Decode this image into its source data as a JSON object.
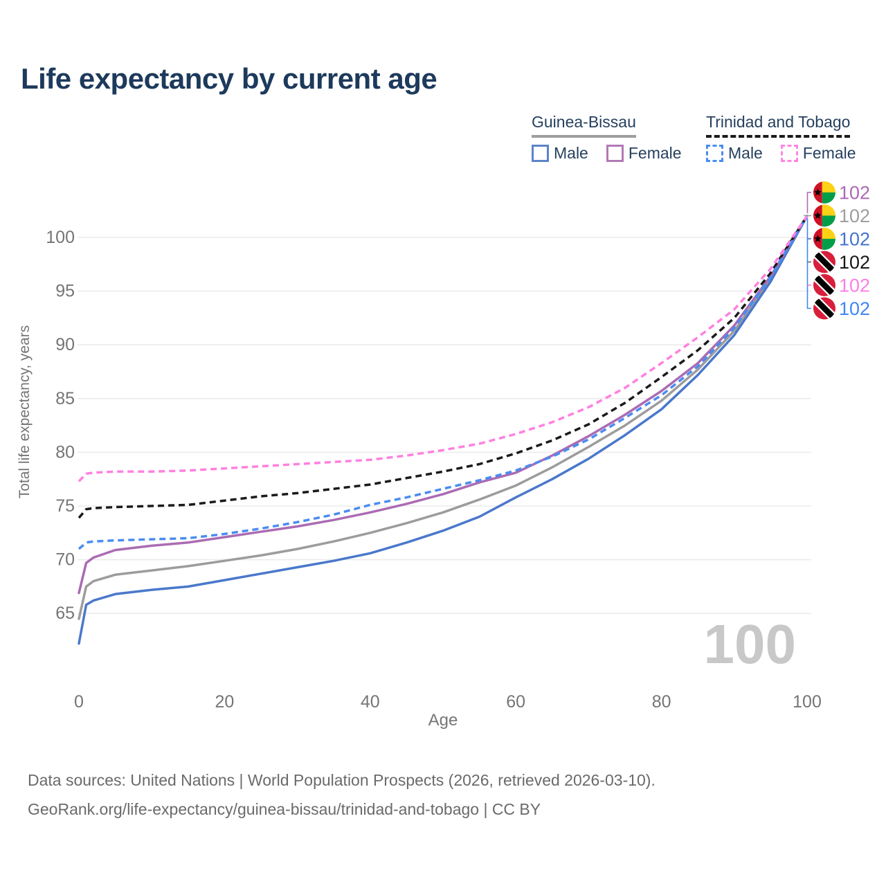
{
  "title": "Life expectancy by current age",
  "watermark": "100",
  "legend": {
    "groups": [
      {
        "name": "Guinea-Bissau",
        "style": "solid",
        "underline_color": "#9e9e9e",
        "items": [
          {
            "label": "Male",
            "color": "#5b84ca",
            "dashed": false
          },
          {
            "label": "Female",
            "color": "#b279b6",
            "dashed": false
          }
        ]
      },
      {
        "name": "Trinidad and Tobago",
        "style": "dashed",
        "underline_color": "#1a1a1a",
        "items": [
          {
            "label": "Male",
            "color": "#4a8cf0",
            "dashed": true
          },
          {
            "label": "Female",
            "color": "#ff85e6",
            "dashed": true
          }
        ]
      }
    ]
  },
  "footer": {
    "line1": "Data sources: United Nations | World Population Prospects (2026, retrieved 2026-03-10).",
    "line2": "GeoRank.org/life-expectancy/guinea-bissau/trinidad-and-tobago | CC BY"
  },
  "chart_data": {
    "type": "line",
    "title": "Life expectancy by current age",
    "xlabel": "Age",
    "ylabel": "Total life expectancy, years",
    "xlim": [
      0,
      100
    ],
    "ylim": [
      62,
      103
    ],
    "xticks": [
      0,
      20,
      40,
      60,
      80,
      100
    ],
    "yticks": [
      65,
      70,
      75,
      80,
      85,
      90,
      95,
      100
    ],
    "grid": "horizontal",
    "legend_position": "top-right",
    "x": [
      0,
      1,
      2,
      5,
      10,
      15,
      20,
      25,
      30,
      35,
      40,
      45,
      50,
      55,
      60,
      65,
      70,
      75,
      80,
      85,
      90,
      95,
      100
    ],
    "series": [
      {
        "name": "Guinea-Bissau Both sexes",
        "color": "#9c9c9c",
        "dash": false,
        "values": [
          64.5,
          67.5,
          68.0,
          68.6,
          69.0,
          69.4,
          69.9,
          70.4,
          71.0,
          71.7,
          72.5,
          73.4,
          74.4,
          75.6,
          76.9,
          78.6,
          80.5,
          82.5,
          84.8,
          87.7,
          91.3,
          96.1,
          102
        ]
      },
      {
        "name": "Guinea-Bissau Male",
        "color": "#4a78cb",
        "dash": false,
        "values": [
          62.2,
          65.8,
          66.2,
          66.8,
          67.2,
          67.5,
          68.1,
          68.7,
          69.3,
          69.9,
          70.6,
          71.6,
          72.7,
          74.0,
          75.8,
          77.5,
          79.4,
          81.6,
          84.0,
          87.2,
          90.9,
          95.9,
          102
        ]
      },
      {
        "name": "Guinea-Bissau Female",
        "color": "#ab6bb3",
        "dash": false,
        "values": [
          66.9,
          69.7,
          70.2,
          70.9,
          71.3,
          71.6,
          72.1,
          72.6,
          73.1,
          73.7,
          74.4,
          75.2,
          76.1,
          77.2,
          78.1,
          79.7,
          81.5,
          83.5,
          85.7,
          88.3,
          91.8,
          96.4,
          102
        ]
      },
      {
        "name": "Trinidad and Tobago Both sexes",
        "color": "#1a1a1a",
        "dash": true,
        "values": [
          73.9,
          74.7,
          74.8,
          74.9,
          75.0,
          75.1,
          75.5,
          75.9,
          76.2,
          76.6,
          77.0,
          77.6,
          78.2,
          78.9,
          79.9,
          81.1,
          82.6,
          84.6,
          87.0,
          89.5,
          92.5,
          96.7,
          102
        ]
      },
      {
        "name": "Trinidad and Tobago Male",
        "color": "#4a8cf0",
        "dash": true,
        "values": [
          71.0,
          71.6,
          71.7,
          71.8,
          71.9,
          72.0,
          72.4,
          72.9,
          73.5,
          74.2,
          75.1,
          75.8,
          76.6,
          77.4,
          78.3,
          79.6,
          81.2,
          83.2,
          85.3,
          88.0,
          91.6,
          96.3,
          102
        ]
      },
      {
        "name": "Trinidad and Tobago Female",
        "color": "#ff80e0",
        "dash": true,
        "values": [
          77.3,
          78.0,
          78.1,
          78.2,
          78.2,
          78.3,
          78.5,
          78.7,
          78.9,
          79.1,
          79.3,
          79.7,
          80.2,
          80.8,
          81.7,
          82.8,
          84.2,
          86.0,
          88.3,
          90.7,
          93.3,
          97.1,
          102
        ]
      }
    ],
    "end_labels": [
      {
        "series": "Guinea-Bissau Female",
        "value": "102",
        "color": "#ad68b5",
        "flag": "guinea-bissau"
      },
      {
        "series": "Guinea-Bissau Both sexes",
        "value": "102",
        "color": "#9e9e9e",
        "flag": "guinea-bissau"
      },
      {
        "series": "Guinea-Bissau Male",
        "value": "102",
        "color": "#4573cd",
        "flag": "guinea-bissau"
      },
      {
        "series": "Trinidad and Tobago Both sexes",
        "value": "102",
        "color": "#181818",
        "flag": "trinidad-and-tobago"
      },
      {
        "series": "Trinidad and Tobago Female",
        "value": "102",
        "color": "#fc7de7",
        "flag": "trinidad-and-tobago"
      },
      {
        "series": "Trinidad and Tobago Male",
        "value": "102",
        "color": "#3f87f5",
        "flag": "trinidad-and-tobago"
      }
    ]
  }
}
